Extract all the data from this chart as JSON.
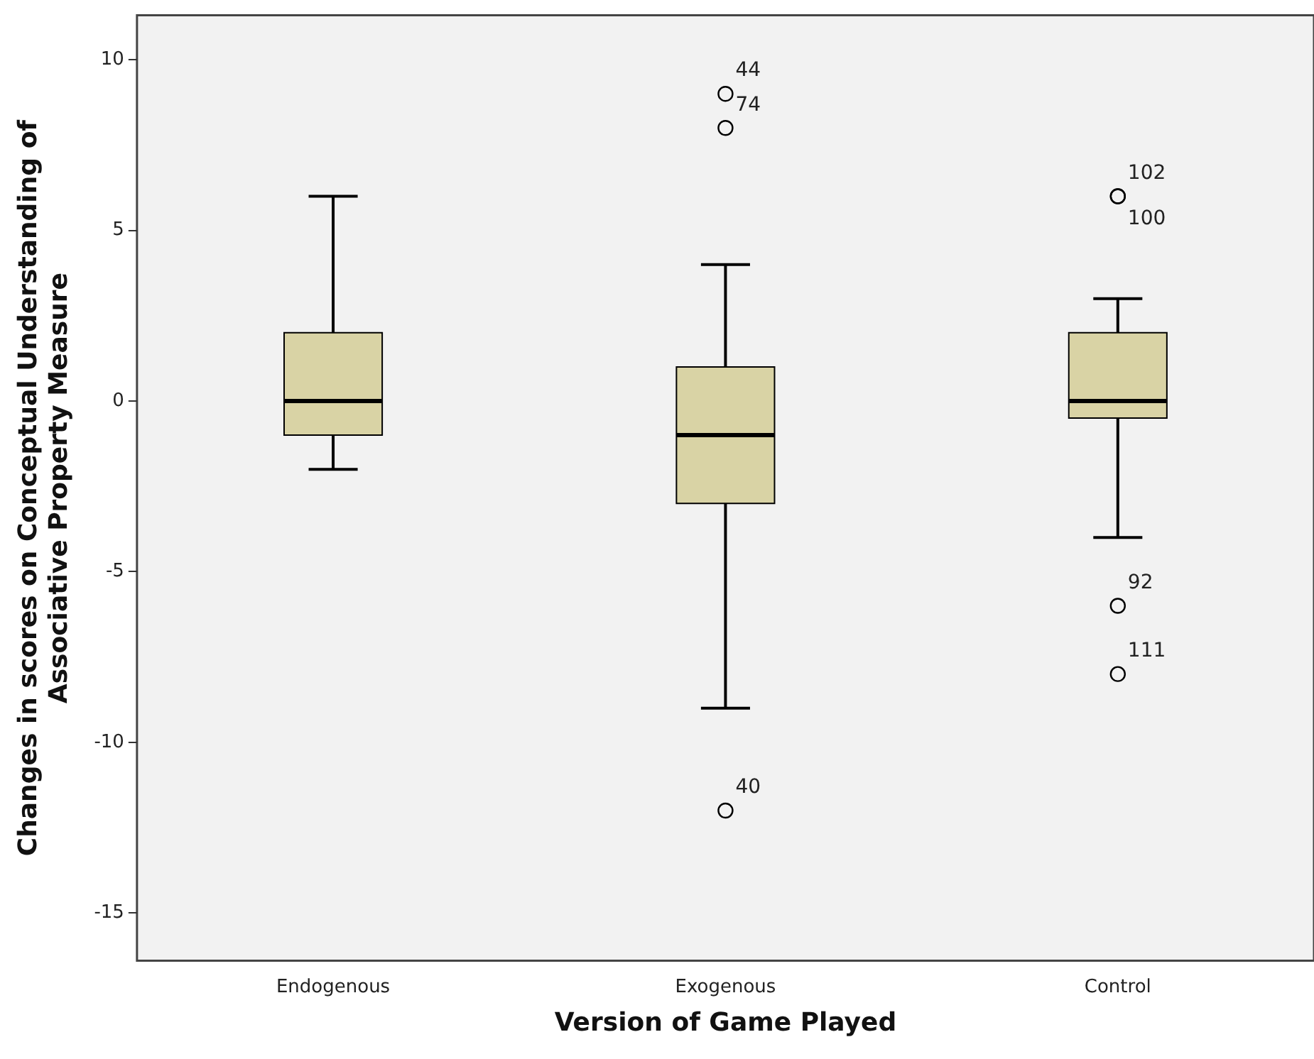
{
  "chart_data": {
    "type": "box",
    "xlabel": "Version of Game Played",
    "ylabel": "Changes in scores on Conceptual Understanding of Associative Property Measure",
    "categories": [
      "Endogenous",
      "Exogenous",
      "Control"
    ],
    "color": "#d9d3a5",
    "boxes": [
      {
        "low": -2,
        "q1": -1,
        "median": 0,
        "q3": 2,
        "high": 6
      },
      {
        "low": -9,
        "q1": -3,
        "median": -1,
        "q3": 1,
        "high": 4,
        "outliers": [
          9,
          8,
          -12
        ]
      },
      {
        "low": -4,
        "q1": -0.5,
        "median": 0,
        "q3": 2,
        "high": 3,
        "outliers": [
          6,
          6,
          -6,
          -8
        ]
      }
    ],
    "ylim": [
      -16.4,
      11.3
    ],
    "yticks": [
      -15,
      -10,
      -5,
      0,
      5,
      10
    ],
    "grid": false,
    "legend": false,
    "annotations": [
      "44",
      "74",
      "40",
      "102",
      "100",
      "92",
      "111"
    ]
  }
}
